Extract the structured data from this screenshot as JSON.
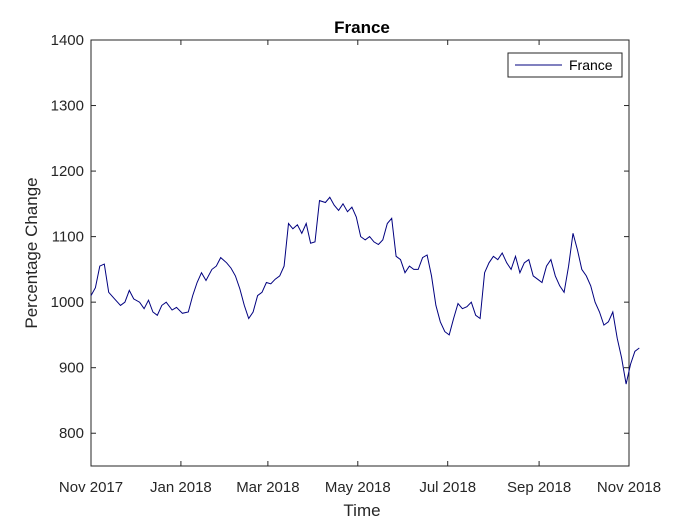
{
  "chart_data": {
    "type": "line",
    "title": "France",
    "xlabel": "Time",
    "ylabel": "Percentage Change",
    "ylim": [
      750,
      1400
    ],
    "yticks": [
      800,
      900,
      1000,
      1100,
      1200,
      1300,
      1400
    ],
    "xlim": [
      "2017-11-01",
      "2018-11-01"
    ],
    "xticks": [
      {
        "date": "2017-11-01",
        "label": "Nov 2017"
      },
      {
        "date": "2018-01-01",
        "label": "Jan 2018"
      },
      {
        "date": "2018-03-01",
        "label": "Mar 2018"
      },
      {
        "date": "2018-05-01",
        "label": "May 2018"
      },
      {
        "date": "2018-07-01",
        "label": "Jul 2018"
      },
      {
        "date": "2018-09-01",
        "label": "Sep 2018"
      },
      {
        "date": "2018-11-01",
        "label": "Nov 2018"
      }
    ],
    "grid": false,
    "legend": {
      "placement": "top-right"
    },
    "series": [
      {
        "name": "France",
        "color": "#00007f",
        "points": [
          [
            "2017-11-01",
            1010
          ],
          [
            "2017-11-04",
            1022
          ],
          [
            "2017-11-07",
            1055
          ],
          [
            "2017-11-10",
            1058
          ],
          [
            "2017-11-13",
            1015
          ],
          [
            "2017-11-17",
            1005
          ],
          [
            "2017-11-21",
            995
          ],
          [
            "2017-11-24",
            1000
          ],
          [
            "2017-11-27",
            1018
          ],
          [
            "2017-11-30",
            1005
          ],
          [
            "2017-12-04",
            1000
          ],
          [
            "2017-12-07",
            990
          ],
          [
            "2017-12-10",
            1003
          ],
          [
            "2017-12-13",
            985
          ],
          [
            "2017-12-16",
            980
          ],
          [
            "2017-12-19",
            995
          ],
          [
            "2017-12-22",
            1000
          ],
          [
            "2017-12-26",
            988
          ],
          [
            "2017-12-29",
            992
          ],
          [
            "2018-01-02",
            983
          ],
          [
            "2018-01-06",
            985
          ],
          [
            "2018-01-09",
            1010
          ],
          [
            "2018-01-12",
            1030
          ],
          [
            "2018-01-15",
            1045
          ],
          [
            "2018-01-18",
            1033
          ],
          [
            "2018-01-22",
            1050
          ],
          [
            "2018-01-25",
            1055
          ],
          [
            "2018-01-28",
            1068
          ],
          [
            "2018-02-01",
            1060
          ],
          [
            "2018-02-04",
            1052
          ],
          [
            "2018-02-07",
            1040
          ],
          [
            "2018-02-10",
            1020
          ],
          [
            "2018-02-13",
            995
          ],
          [
            "2018-02-16",
            975
          ],
          [
            "2018-02-19",
            985
          ],
          [
            "2018-02-22",
            1010
          ],
          [
            "2018-02-25",
            1015
          ],
          [
            "2018-02-28",
            1030
          ],
          [
            "2018-03-03",
            1028
          ],
          [
            "2018-03-06",
            1035
          ],
          [
            "2018-03-09",
            1040
          ],
          [
            "2018-03-12",
            1055
          ],
          [
            "2018-03-15",
            1120
          ],
          [
            "2018-03-18",
            1112
          ],
          [
            "2018-03-21",
            1118
          ],
          [
            "2018-03-24",
            1105
          ],
          [
            "2018-03-27",
            1120
          ],
          [
            "2018-03-30",
            1090
          ],
          [
            "2018-04-02",
            1092
          ],
          [
            "2018-04-05",
            1155
          ],
          [
            "2018-04-09",
            1152
          ],
          [
            "2018-04-12",
            1160
          ],
          [
            "2018-04-15",
            1148
          ],
          [
            "2018-04-18",
            1140
          ],
          [
            "2018-04-21",
            1150
          ],
          [
            "2018-04-24",
            1138
          ],
          [
            "2018-04-27",
            1145
          ],
          [
            "2018-04-30",
            1130
          ],
          [
            "2018-05-03",
            1100
          ],
          [
            "2018-05-06",
            1095
          ],
          [
            "2018-05-09",
            1100
          ],
          [
            "2018-05-12",
            1092
          ],
          [
            "2018-05-15",
            1088
          ],
          [
            "2018-05-18",
            1095
          ],
          [
            "2018-05-21",
            1120
          ],
          [
            "2018-05-24",
            1128
          ],
          [
            "2018-05-27",
            1070
          ],
          [
            "2018-05-30",
            1065
          ],
          [
            "2018-06-02",
            1045
          ],
          [
            "2018-06-05",
            1055
          ],
          [
            "2018-06-08",
            1050
          ],
          [
            "2018-06-11",
            1050
          ],
          [
            "2018-06-14",
            1068
          ],
          [
            "2018-06-17",
            1072
          ],
          [
            "2018-06-20",
            1040
          ],
          [
            "2018-06-23",
            995
          ],
          [
            "2018-06-26",
            970
          ],
          [
            "2018-06-29",
            955
          ],
          [
            "2018-07-02",
            950
          ],
          [
            "2018-07-05",
            975
          ],
          [
            "2018-07-08",
            998
          ],
          [
            "2018-07-11",
            990
          ],
          [
            "2018-07-14",
            993
          ],
          [
            "2018-07-17",
            1000
          ],
          [
            "2018-07-20",
            980
          ],
          [
            "2018-07-23",
            975
          ],
          [
            "2018-07-26",
            1045
          ],
          [
            "2018-07-29",
            1060
          ],
          [
            "2018-08-01",
            1070
          ],
          [
            "2018-08-04",
            1065
          ],
          [
            "2018-08-07",
            1075
          ],
          [
            "2018-08-10",
            1060
          ],
          [
            "2018-08-13",
            1050
          ],
          [
            "2018-08-16",
            1070
          ],
          [
            "2018-08-19",
            1045
          ],
          [
            "2018-08-22",
            1060
          ],
          [
            "2018-08-25",
            1065
          ],
          [
            "2018-08-28",
            1040
          ],
          [
            "2018-08-31",
            1035
          ],
          [
            "2018-09-03",
            1030
          ],
          [
            "2018-09-06",
            1055
          ],
          [
            "2018-09-09",
            1065
          ],
          [
            "2018-09-12",
            1040
          ],
          [
            "2018-09-15",
            1025
          ],
          [
            "2018-09-18",
            1015
          ],
          [
            "2018-09-21",
            1055
          ],
          [
            "2018-09-24",
            1105
          ],
          [
            "2018-09-27",
            1080
          ],
          [
            "2018-09-30",
            1050
          ],
          [
            "2018-10-03",
            1040
          ],
          [
            "2018-10-06",
            1025
          ],
          [
            "2018-10-09",
            1000
          ],
          [
            "2018-10-12",
            985
          ],
          [
            "2018-10-15",
            965
          ],
          [
            "2018-10-18",
            970
          ],
          [
            "2018-10-21",
            985
          ],
          [
            "2018-10-24",
            945
          ],
          [
            "2018-10-27",
            915
          ],
          [
            "2018-10-30",
            875
          ],
          [
            "2018-11-02",
            905
          ],
          [
            "2018-11-05",
            925
          ],
          [
            "2018-11-08",
            930
          ]
        ]
      }
    ]
  }
}
